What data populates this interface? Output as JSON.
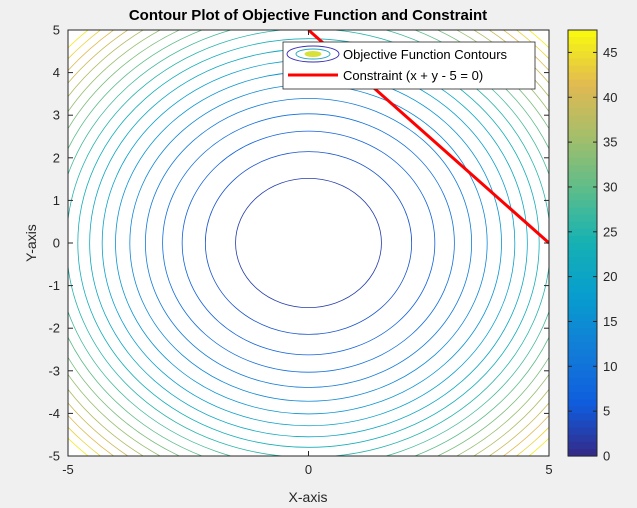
{
  "chart_data": {
    "type": "contour",
    "title": "Contour Plot of Objective Function and Constraint",
    "xlabel": "X-axis",
    "ylabel": "Y-axis",
    "xlim": [
      -5,
      5
    ],
    "ylim": [
      -5,
      5
    ],
    "x_ticks": [
      "-5",
      "0",
      "5"
    ],
    "y_ticks": [
      "5",
      "4",
      "3",
      "2",
      "1",
      "0",
      "-1",
      "-2",
      "-3",
      "-4",
      "-5"
    ],
    "contour_levels": [
      2.3,
      4.6,
      6.9,
      9.2,
      11.5,
      13.8,
      16.1,
      18.4,
      20.7,
      23.0,
      25.3,
      27.6,
      29.9,
      32.2,
      34.5,
      36.8,
      39.1,
      41.4,
      43.7,
      46.0
    ],
    "colorbar": {
      "min": 0,
      "max": 47.5,
      "ticks": [
        "45",
        "40",
        "35",
        "30",
        "25",
        "20",
        "15",
        "10",
        "5",
        "0"
      ]
    },
    "constraint_line": {
      "x": [
        0,
        5
      ],
      "y": [
        5,
        0
      ],
      "color": "#ff0000"
    },
    "legend": {
      "position": "top-right",
      "entries": [
        "Objective Function Contours",
        "Constraint (x + y - 5 = 0)"
      ]
    },
    "colors": {
      "background": "#f0f0f0",
      "axes_bg": "#ffffff",
      "constraint": "#ff0000"
    }
  }
}
